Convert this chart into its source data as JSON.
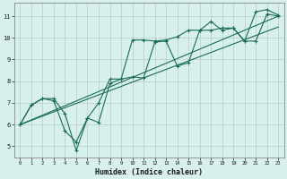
{
  "xlabel": "Humidex (Indice chaleur)",
  "background_color": "#d8f0ec",
  "grid_color": "#b8ccc8",
  "line_color": "#1a6b5a",
  "xlim": [
    -0.5,
    23.5
  ],
  "ylim": [
    4.5,
    11.6
  ],
  "xticks": [
    0,
    1,
    2,
    3,
    4,
    5,
    6,
    7,
    8,
    9,
    10,
    11,
    12,
    13,
    14,
    15,
    16,
    17,
    18,
    19,
    20,
    21,
    22,
    23
  ],
  "yticks": [
    5,
    6,
    7,
    8,
    9,
    10,
    11
  ],
  "line1_x": [
    0,
    1,
    2,
    3,
    4,
    5,
    6,
    7,
    8,
    9,
    10,
    11,
    12,
    13,
    14,
    15,
    16,
    17,
    18,
    19,
    20,
    21,
    22,
    23
  ],
  "line1_y": [
    6.0,
    6.9,
    7.2,
    7.2,
    6.5,
    4.8,
    6.3,
    6.1,
    7.9,
    8.1,
    9.9,
    9.9,
    9.85,
    9.9,
    10.05,
    10.35,
    10.35,
    10.75,
    10.35,
    10.45,
    9.85,
    11.2,
    11.3,
    11.05
  ],
  "line2_x": [
    0,
    1,
    2,
    3,
    4,
    5,
    6,
    7,
    8,
    9,
    10,
    11,
    12,
    13,
    14,
    15,
    16,
    17,
    18,
    19,
    20,
    21,
    22,
    23
  ],
  "line2_y": [
    6.0,
    6.9,
    7.2,
    7.1,
    5.7,
    5.2,
    6.3,
    7.0,
    8.1,
    8.1,
    8.2,
    8.15,
    9.8,
    9.85,
    8.7,
    8.85,
    10.35,
    10.35,
    10.45,
    10.45,
    9.85,
    9.85,
    11.1,
    11.0
  ],
  "line3_x": [
    0,
    23
  ],
  "line3_y": [
    6.0,
    11.0
  ],
  "line4_x": [
    0,
    23
  ],
  "line4_y": [
    6.0,
    10.5
  ]
}
